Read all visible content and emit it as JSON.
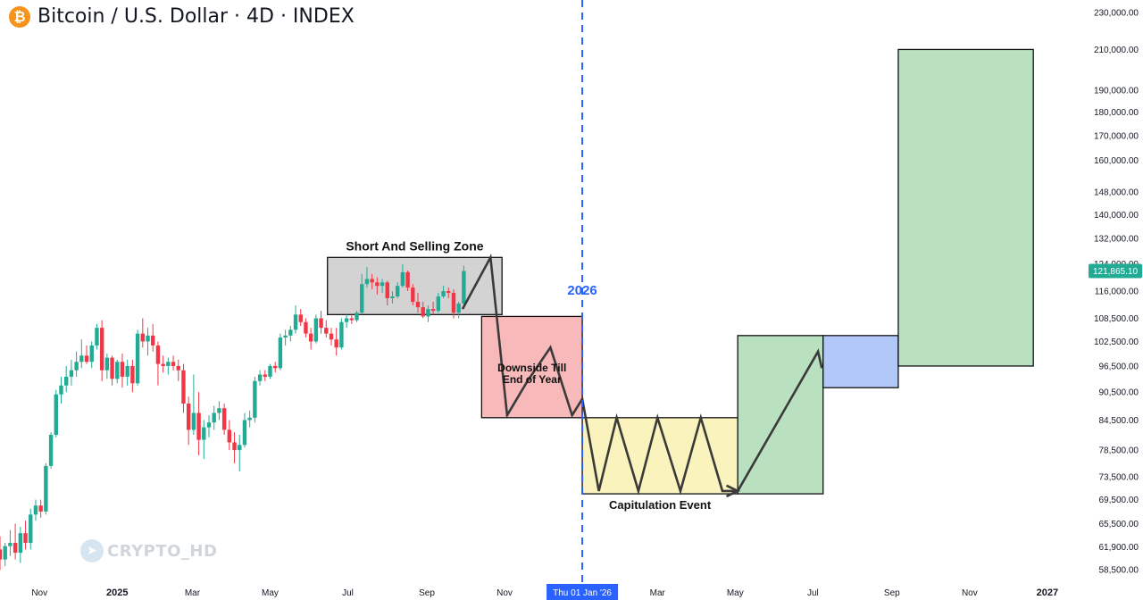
{
  "header": {
    "logo_glyph": "₿",
    "logo_icon": "bitcoin-icon",
    "title": "Bitcoin / U.S. Dollar · 4D · INDEX"
  },
  "watermark": {
    "icon": "telegram-icon",
    "glyph": "➤",
    "text": "CRYPTO_HD"
  },
  "chart_data": {
    "type": "candlestick",
    "title": "Bitcoin / U.S. Dollar · 4D · INDEX",
    "y_scale": "log",
    "ylim": [
      57000,
      232000
    ],
    "xlim": [
      "2024-10-01",
      "2027-01-20"
    ],
    "y_ticks": [
      {
        "value": 230000,
        "label": "230,000.00"
      },
      {
        "value": 210000,
        "label": "210,000.00"
      },
      {
        "value": 190000,
        "label": "190,000.00"
      },
      {
        "value": 180000,
        "label": "180,000.00"
      },
      {
        "value": 170000,
        "label": "170,000.00"
      },
      {
        "value": 160000,
        "label": "160,000.00"
      },
      {
        "value": 148000,
        "label": "148,000.00"
      },
      {
        "value": 140000,
        "label": "140,000.00"
      },
      {
        "value": 132000,
        "label": "132,000.00"
      },
      {
        "value": 124000,
        "label": "124,000.00"
      },
      {
        "value": 116000,
        "label": "116,000.00"
      },
      {
        "value": 108500,
        "label": "108,500.00"
      },
      {
        "value": 102500,
        "label": "102,500.00"
      },
      {
        "value": 96500,
        "label": "96,500.00"
      },
      {
        "value": 90500,
        "label": "90,500.00"
      },
      {
        "value": 84500,
        "label": "84,500.00"
      },
      {
        "value": 78500,
        "label": "78,500.00"
      },
      {
        "value": 73500,
        "label": "73,500.00"
      },
      {
        "value": 69500,
        "label": "69,500.00"
      },
      {
        "value": 65500,
        "label": "65,500.00"
      },
      {
        "value": 61900,
        "label": "61,900.00"
      },
      {
        "value": 58500,
        "label": "58,500.00"
      }
    ],
    "x_ticks": [
      {
        "date": "2024-11-01",
        "label": "Nov",
        "bold": false
      },
      {
        "date": "2025-01-01",
        "label": "2025",
        "bold": true
      },
      {
        "date": "2025-03-01",
        "label": "Mar",
        "bold": false
      },
      {
        "date": "2025-05-01",
        "label": "May",
        "bold": false
      },
      {
        "date": "2025-07-01",
        "label": "Jul",
        "bold": false
      },
      {
        "date": "2025-09-01",
        "label": "Sep",
        "bold": false
      },
      {
        "date": "2025-11-01",
        "label": "Nov",
        "bold": false
      },
      {
        "date": "2026-03-01",
        "label": "Mar",
        "bold": false
      },
      {
        "date": "2026-05-01",
        "label": "May",
        "bold": false
      },
      {
        "date": "2026-07-01",
        "label": "Jul",
        "bold": false
      },
      {
        "date": "2026-09-01",
        "label": "Sep",
        "bold": false
      },
      {
        "date": "2026-11-01",
        "label": "Nov",
        "bold": false
      },
      {
        "date": "2027-01-01",
        "label": "2027",
        "bold": true
      }
    ],
    "crosshair_date": "2026-01-01",
    "crosshair_date_label": "Thu 01 Jan '26",
    "year_marker_label": "2026",
    "last_price": 121865.1,
    "last_price_label": "121,865.10",
    "colors": {
      "up": "#22ab94",
      "down": "#f23645",
      "crosshair": "#2962ff",
      "last_price": "#22ab94"
    },
    "zones": [
      {
        "label": "Short And Selling Zone",
        "x0": "2025-06-15",
        "x1": "2025-10-30",
        "y0": 109500,
        "y1": 126000,
        "color": "#d3d3d3"
      },
      {
        "label": "Downside Till End of Year",
        "x0": "2025-10-14",
        "x1": "2026-01-01",
        "y0": 85000,
        "y1": 109000,
        "color": "#f7b9b9"
      },
      {
        "label": "Capitulation Event",
        "x0": "2026-01-01",
        "x1": "2026-05-03",
        "y0": 70500,
        "y1": 85000,
        "color": "#fbf3bd"
      },
      {
        "label": "",
        "x0": "2026-05-03",
        "x1": "2026-07-09",
        "y0": 70500,
        "y1": 104000,
        "color": "#b9e1c0"
      },
      {
        "label": "",
        "x0": "2026-07-09",
        "x1": "2026-09-06",
        "y0": 91500,
        "y1": 104000,
        "color": "#b2c8f9"
      },
      {
        "label": "",
        "x0": "2026-09-06",
        "x1": "2026-12-21",
        "y0": 96500,
        "y1": 210000,
        "color": "#b9e1c0"
      }
    ],
    "projection_path": [
      {
        "date": "2025-09-29",
        "price": 111000
      },
      {
        "date": "2025-10-21",
        "price": 126000
      },
      {
        "date": "2025-11-03",
        "price": 85500
      },
      {
        "date": "2025-11-19",
        "price": 93000
      },
      {
        "date": "2025-12-07",
        "price": 101000
      },
      {
        "date": "2025-12-24",
        "price": 85500
      },
      {
        "date": "2026-01-01",
        "price": 89000
      },
      {
        "date": "2026-01-14",
        "price": 71000
      },
      {
        "date": "2026-01-28",
        "price": 85000
      },
      {
        "date": "2026-02-14",
        "price": 71000
      },
      {
        "date": "2026-03-01",
        "price": 85000
      },
      {
        "date": "2026-03-19",
        "price": 71000
      },
      {
        "date": "2026-04-04",
        "price": 85000
      },
      {
        "date": "2026-04-21",
        "price": 71000
      },
      {
        "date": "2026-05-03",
        "price": 71000
      },
      {
        "date": "2026-07-05",
        "price": 100000
      },
      {
        "date": "2026-07-08",
        "price": 96000
      }
    ],
    "candles": [
      {
        "d": "2024-10-01",
        "o": 61500,
        "h": 63500,
        "l": 58500,
        "c": 60000
      },
      {
        "d": "2024-10-05",
        "o": 60000,
        "h": 62500,
        "l": 59000,
        "c": 62000
      },
      {
        "d": "2024-10-09",
        "o": 62000,
        "h": 64500,
        "l": 60500,
        "c": 62500
      },
      {
        "d": "2024-10-13",
        "o": 62500,
        "h": 65500,
        "l": 60000,
        "c": 61000
      },
      {
        "d": "2024-10-17",
        "o": 61000,
        "h": 65000,
        "l": 59500,
        "c": 64000
      },
      {
        "d": "2024-10-21",
        "o": 64000,
        "h": 66000,
        "l": 61500,
        "c": 62500
      },
      {
        "d": "2024-10-25",
        "o": 62500,
        "h": 68000,
        "l": 61500,
        "c": 67000
      },
      {
        "d": "2024-10-29",
        "o": 67000,
        "h": 69500,
        "l": 66000,
        "c": 68500
      },
      {
        "d": "2024-11-02",
        "o": 68500,
        "h": 69500,
        "l": 66500,
        "c": 67500
      },
      {
        "d": "2024-11-06",
        "o": 67500,
        "h": 76000,
        "l": 67000,
        "c": 75500
      },
      {
        "d": "2024-11-10",
        "o": 75500,
        "h": 82000,
        "l": 75000,
        "c": 81500
      },
      {
        "d": "2024-11-14",
        "o": 81500,
        "h": 91000,
        "l": 81000,
        "c": 90000
      },
      {
        "d": "2024-11-18",
        "o": 90000,
        "h": 94000,
        "l": 88000,
        "c": 92000
      },
      {
        "d": "2024-11-22",
        "o": 92000,
        "h": 96500,
        "l": 90500,
        "c": 94000
      },
      {
        "d": "2024-11-26",
        "o": 94000,
        "h": 98000,
        "l": 92000,
        "c": 95500
      },
      {
        "d": "2024-11-30",
        "o": 95500,
        "h": 100000,
        "l": 94000,
        "c": 97500
      },
      {
        "d": "2024-12-04",
        "o": 97500,
        "h": 103000,
        "l": 96000,
        "c": 99000
      },
      {
        "d": "2024-12-08",
        "o": 99000,
        "h": 101500,
        "l": 97000,
        "c": 97500
      },
      {
        "d": "2024-12-12",
        "o": 97500,
        "h": 102500,
        "l": 96000,
        "c": 101500
      },
      {
        "d": "2024-12-16",
        "o": 101500,
        "h": 107000,
        "l": 100500,
        "c": 106000
      },
      {
        "d": "2024-12-20",
        "o": 106000,
        "h": 108000,
        "l": 93000,
        "c": 95500
      },
      {
        "d": "2024-12-24",
        "o": 95500,
        "h": 99500,
        "l": 93500,
        "c": 98500
      },
      {
        "d": "2024-12-28",
        "o": 98500,
        "h": 99000,
        "l": 92000,
        "c": 93500
      },
      {
        "d": "2025-01-01",
        "o": 93500,
        "h": 98000,
        "l": 92500,
        "c": 97500
      },
      {
        "d": "2025-01-05",
        "o": 97500,
        "h": 99500,
        "l": 91500,
        "c": 94000
      },
      {
        "d": "2025-01-09",
        "o": 94000,
        "h": 98000,
        "l": 92000,
        "c": 96500
      },
      {
        "d": "2025-01-13",
        "o": 96500,
        "h": 98000,
        "l": 90500,
        "c": 92500
      },
      {
        "d": "2025-01-17",
        "o": 92500,
        "h": 105500,
        "l": 92000,
        "c": 104500
      },
      {
        "d": "2025-01-21",
        "o": 104500,
        "h": 108500,
        "l": 101000,
        "c": 102500
      },
      {
        "d": "2025-01-25",
        "o": 102500,
        "h": 106000,
        "l": 99000,
        "c": 104000
      },
      {
        "d": "2025-01-29",
        "o": 104000,
        "h": 107000,
        "l": 100000,
        "c": 101500
      },
      {
        "d": "2025-02-02",
        "o": 101500,
        "h": 102500,
        "l": 92000,
        "c": 97000
      },
      {
        "d": "2025-02-06",
        "o": 97000,
        "h": 99000,
        "l": 95000,
        "c": 96500
      },
      {
        "d": "2025-02-10",
        "o": 96500,
        "h": 98500,
        "l": 94500,
        "c": 97500
      },
      {
        "d": "2025-02-14",
        "o": 97500,
        "h": 99000,
        "l": 95500,
        "c": 96500
      },
      {
        "d": "2025-02-18",
        "o": 96500,
        "h": 98000,
        "l": 93000,
        "c": 95500
      },
      {
        "d": "2025-02-22",
        "o": 95500,
        "h": 97000,
        "l": 86000,
        "c": 88000
      },
      {
        "d": "2025-02-26",
        "o": 88000,
        "h": 89500,
        "l": 79500,
        "c": 82500
      },
      {
        "d": "2025-03-02",
        "o": 82500,
        "h": 94500,
        "l": 81500,
        "c": 86000
      },
      {
        "d": "2025-03-06",
        "o": 86000,
        "h": 90500,
        "l": 77500,
        "c": 80500
      },
      {
        "d": "2025-03-10",
        "o": 80500,
        "h": 84500,
        "l": 76800,
        "c": 83000
      },
      {
        "d": "2025-03-14",
        "o": 83000,
        "h": 85500,
        "l": 81000,
        "c": 84000
      },
      {
        "d": "2025-03-18",
        "o": 84000,
        "h": 87500,
        "l": 82500,
        "c": 86000
      },
      {
        "d": "2025-03-22",
        "o": 86000,
        "h": 88500,
        "l": 84500,
        "c": 87000
      },
      {
        "d": "2025-03-26",
        "o": 87000,
        "h": 88000,
        "l": 81500,
        "c": 82500
      },
      {
        "d": "2025-03-30",
        "o": 82500,
        "h": 84500,
        "l": 78500,
        "c": 80000
      },
      {
        "d": "2025-04-03",
        "o": 80000,
        "h": 82000,
        "l": 76000,
        "c": 78500
      },
      {
        "d": "2025-04-07",
        "o": 78500,
        "h": 81500,
        "l": 74500,
        "c": 79500
      },
      {
        "d": "2025-04-11",
        "o": 79500,
        "h": 86000,
        "l": 79000,
        "c": 84500
      },
      {
        "d": "2025-04-15",
        "o": 84500,
        "h": 86500,
        "l": 83000,
        "c": 85000
      },
      {
        "d": "2025-04-19",
        "o": 85000,
        "h": 94000,
        "l": 84000,
        "c": 93000
      },
      {
        "d": "2025-04-23",
        "o": 93000,
        "h": 95500,
        "l": 92000,
        "c": 94500
      },
      {
        "d": "2025-04-27",
        "o": 94500,
        "h": 95500,
        "l": 93000,
        "c": 94000
      },
      {
        "d": "2025-05-01",
        "o": 94000,
        "h": 97000,
        "l": 93500,
        "c": 96500
      },
      {
        "d": "2025-05-05",
        "o": 96500,
        "h": 97500,
        "l": 95000,
        "c": 96000
      },
      {
        "d": "2025-05-09",
        "o": 96000,
        "h": 104500,
        "l": 95500,
        "c": 103500
      },
      {
        "d": "2025-05-13",
        "o": 103500,
        "h": 105500,
        "l": 101500,
        "c": 104000
      },
      {
        "d": "2025-05-17",
        "o": 104000,
        "h": 106500,
        "l": 102500,
        "c": 105500
      },
      {
        "d": "2025-05-21",
        "o": 105500,
        "h": 112000,
        "l": 104500,
        "c": 109500
      },
      {
        "d": "2025-05-25",
        "o": 109500,
        "h": 111000,
        "l": 106500,
        "c": 107500
      },
      {
        "d": "2025-05-29",
        "o": 107500,
        "h": 108500,
        "l": 103500,
        "c": 104500
      },
      {
        "d": "2025-06-02",
        "o": 104500,
        "h": 106000,
        "l": 100500,
        "c": 102500
      },
      {
        "d": "2025-06-06",
        "o": 102500,
        "h": 109500,
        "l": 102000,
        "c": 108500
      },
      {
        "d": "2025-06-10",
        "o": 108500,
        "h": 110500,
        "l": 104500,
        "c": 106000
      },
      {
        "d": "2025-06-14",
        "o": 106000,
        "h": 108000,
        "l": 103500,
        "c": 104500
      },
      {
        "d": "2025-06-18",
        "o": 104500,
        "h": 106000,
        "l": 101500,
        "c": 103000
      },
      {
        "d": "2025-06-22",
        "o": 103000,
        "h": 106000,
        "l": 99000,
        "c": 101000
      },
      {
        "d": "2025-06-26",
        "o": 101000,
        "h": 108500,
        "l": 100500,
        "c": 107500
      },
      {
        "d": "2025-06-30",
        "o": 107500,
        "h": 109500,
        "l": 106000,
        "c": 108500
      },
      {
        "d": "2025-07-04",
        "o": 108500,
        "h": 109500,
        "l": 107000,
        "c": 108000
      },
      {
        "d": "2025-07-08",
        "o": 108000,
        "h": 110500,
        "l": 107500,
        "c": 110000
      },
      {
        "d": "2025-07-12",
        "o": 110000,
        "h": 121000,
        "l": 109500,
        "c": 118000
      },
      {
        "d": "2025-07-16",
        "o": 118000,
        "h": 123000,
        "l": 117000,
        "c": 119500
      },
      {
        "d": "2025-07-20",
        "o": 119500,
        "h": 121000,
        "l": 116500,
        "c": 118500
      },
      {
        "d": "2025-07-24",
        "o": 118500,
        "h": 120000,
        "l": 115000,
        "c": 117500
      },
      {
        "d": "2025-07-28",
        "o": 117500,
        "h": 119500,
        "l": 115500,
        "c": 118500
      },
      {
        "d": "2025-08-01",
        "o": 118500,
        "h": 119000,
        "l": 112000,
        "c": 114000
      },
      {
        "d": "2025-08-05",
        "o": 114000,
        "h": 116000,
        "l": 112500,
        "c": 114500
      },
      {
        "d": "2025-08-09",
        "o": 114500,
        "h": 118500,
        "l": 114000,
        "c": 117500
      },
      {
        "d": "2025-08-13",
        "o": 117500,
        "h": 124000,
        "l": 117000,
        "c": 121500
      },
      {
        "d": "2025-08-17",
        "o": 121500,
        "h": 122000,
        "l": 116000,
        "c": 117000
      },
      {
        "d": "2025-08-21",
        "o": 117000,
        "h": 118000,
        "l": 112000,
        "c": 113000
      },
      {
        "d": "2025-08-25",
        "o": 113000,
        "h": 115500,
        "l": 110000,
        "c": 111500
      },
      {
        "d": "2025-08-29",
        "o": 111500,
        "h": 113000,
        "l": 108500,
        "c": 109000
      },
      {
        "d": "2025-09-02",
        "o": 109000,
        "h": 112000,
        "l": 107500,
        "c": 111000
      },
      {
        "d": "2025-09-06",
        "o": 111000,
        "h": 113000,
        "l": 109500,
        "c": 110500
      },
      {
        "d": "2025-09-10",
        "o": 110500,
        "h": 115500,
        "l": 110000,
        "c": 114500
      },
      {
        "d": "2025-09-14",
        "o": 114500,
        "h": 117500,
        "l": 114000,
        "c": 116000
      },
      {
        "d": "2025-09-18",
        "o": 116000,
        "h": 117000,
        "l": 114000,
        "c": 115500
      },
      {
        "d": "2025-09-22",
        "o": 115500,
        "h": 116500,
        "l": 108500,
        "c": 110000
      },
      {
        "d": "2025-09-26",
        "o": 110000,
        "h": 113000,
        "l": 108500,
        "c": 112500
      },
      {
        "d": "2025-09-30",
        "o": 112500,
        "h": 123500,
        "l": 112000,
        "c": 121865.1
      }
    ]
  }
}
